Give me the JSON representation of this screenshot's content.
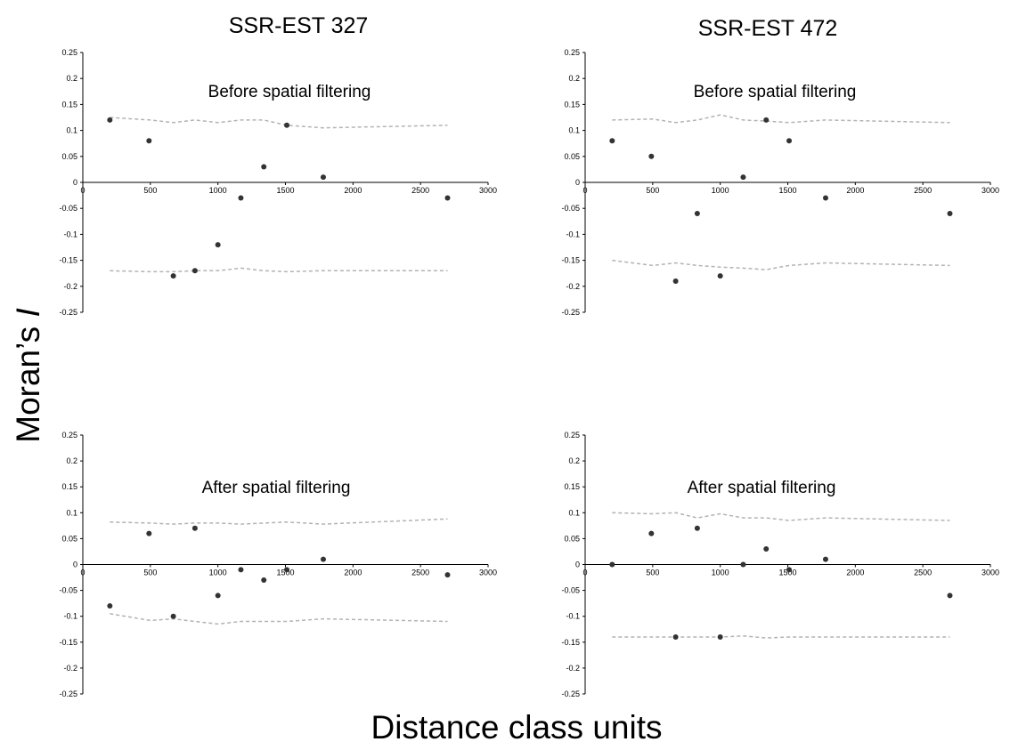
{
  "figure": {
    "ylabel": "Moran’s I",
    "xlabel": "Distance class units",
    "colors": {
      "points": "#333333",
      "envelope": "#b3b3b3",
      "axis": "#000000"
    }
  },
  "chart_data": [
    {
      "type": "scatter",
      "title": "SSR-EST 327",
      "annotation": "Before spatial filtering",
      "xlim": [
        0,
        3000
      ],
      "ylim": [
        -0.25,
        0.25
      ],
      "xticks": [
        0,
        500,
        1000,
        1500,
        2000,
        2500,
        3000
      ],
      "yticks": [
        0.25,
        0.2,
        0.15,
        0.1,
        0.05,
        0,
        -0.05,
        -0.1,
        -0.15,
        -0.2,
        -0.25
      ],
      "points": [
        [
          200,
          0.12
        ],
        [
          490,
          0.08
        ],
        [
          670,
          -0.18
        ],
        [
          830,
          -0.17
        ],
        [
          1000,
          -0.12
        ],
        [
          1170,
          -0.03
        ],
        [
          1340,
          0.03
        ],
        [
          1510,
          0.11
        ],
        [
          1780,
          0.01
        ],
        [
          2700,
          -0.03
        ]
      ],
      "upper": [
        [
          200,
          0.125
        ],
        [
          500,
          0.12
        ],
        [
          670,
          0.115
        ],
        [
          830,
          0.12
        ],
        [
          1000,
          0.115
        ],
        [
          1170,
          0.12
        ],
        [
          1340,
          0.12
        ],
        [
          1510,
          0.11
        ],
        [
          1780,
          0.105
        ],
        [
          2700,
          0.11
        ]
      ],
      "lower": [
        [
          200,
          -0.17
        ],
        [
          500,
          -0.172
        ],
        [
          670,
          -0.172
        ],
        [
          830,
          -0.17
        ],
        [
          1000,
          -0.17
        ],
        [
          1170,
          -0.165
        ],
        [
          1340,
          -0.17
        ],
        [
          1510,
          -0.172
        ],
        [
          1780,
          -0.17
        ],
        [
          2700,
          -0.17
        ]
      ]
    },
    {
      "type": "scatter",
      "title": "SSR-EST 472",
      "annotation": "Before spatial filtering",
      "xlim": [
        0,
        3000
      ],
      "ylim": [
        -0.25,
        0.25
      ],
      "xticks": [
        0,
        500,
        1000,
        1500,
        2000,
        2500,
        3000
      ],
      "yticks": [
        0.25,
        0.2,
        0.15,
        0.1,
        0.05,
        0,
        -0.05,
        -0.1,
        -0.15,
        -0.2,
        -0.25
      ],
      "points": [
        [
          200,
          0.08
        ],
        [
          490,
          0.05
        ],
        [
          670,
          -0.19
        ],
        [
          830,
          -0.06
        ],
        [
          1000,
          -0.18
        ],
        [
          1170,
          0.01
        ],
        [
          1340,
          0.12
        ],
        [
          1510,
          0.08
        ],
        [
          1780,
          -0.03
        ],
        [
          2700,
          -0.06
        ]
      ],
      "upper": [
        [
          200,
          0.12
        ],
        [
          500,
          0.122
        ],
        [
          670,
          0.115
        ],
        [
          830,
          0.12
        ],
        [
          1000,
          0.13
        ],
        [
          1170,
          0.12
        ],
        [
          1340,
          0.118
        ],
        [
          1510,
          0.115
        ],
        [
          1780,
          0.12
        ],
        [
          2700,
          0.115
        ]
      ],
      "lower": [
        [
          200,
          -0.15
        ],
        [
          500,
          -0.16
        ],
        [
          670,
          -0.155
        ],
        [
          830,
          -0.16
        ],
        [
          1000,
          -0.163
        ],
        [
          1170,
          -0.165
        ],
        [
          1340,
          -0.168
        ],
        [
          1510,
          -0.16
        ],
        [
          1780,
          -0.155
        ],
        [
          2700,
          -0.16
        ]
      ]
    },
    {
      "type": "scatter",
      "title": "",
      "annotation": "After spatial filtering",
      "xlim": [
        0,
        3000
      ],
      "ylim": [
        -0.25,
        0.25
      ],
      "xticks": [
        0,
        500,
        1000,
        1500,
        2000,
        2500,
        3000
      ],
      "yticks": [
        0.25,
        0.2,
        0.15,
        0.1,
        0.05,
        0,
        -0.05,
        -0.1,
        -0.15,
        -0.2,
        -0.25
      ],
      "points": [
        [
          200,
          -0.08
        ],
        [
          490,
          0.06
        ],
        [
          670,
          -0.1
        ],
        [
          830,
          0.07
        ],
        [
          1000,
          -0.06
        ],
        [
          1170,
          -0.01
        ],
        [
          1340,
          -0.03
        ],
        [
          1510,
          -0.01
        ],
        [
          1780,
          0.01
        ],
        [
          2700,
          -0.02
        ]
      ],
      "upper": [
        [
          200,
          0.082
        ],
        [
          500,
          0.08
        ],
        [
          670,
          0.078
        ],
        [
          830,
          0.08
        ],
        [
          1000,
          0.08
        ],
        [
          1170,
          0.078
        ],
        [
          1340,
          0.08
        ],
        [
          1510,
          0.082
        ],
        [
          1780,
          0.078
        ],
        [
          2700,
          0.088
        ]
      ],
      "lower": [
        [
          200,
          -0.095
        ],
        [
          500,
          -0.108
        ],
        [
          670,
          -0.105
        ],
        [
          830,
          -0.11
        ],
        [
          1000,
          -0.115
        ],
        [
          1170,
          -0.11
        ],
        [
          1340,
          -0.11
        ],
        [
          1510,
          -0.11
        ],
        [
          1780,
          -0.105
        ],
        [
          2700,
          -0.11
        ]
      ]
    },
    {
      "type": "scatter",
      "title": "",
      "annotation": "After spatial filtering",
      "xlim": [
        0,
        3000
      ],
      "ylim": [
        -0.25,
        0.25
      ],
      "xticks": [
        0,
        500,
        1000,
        1500,
        2000,
        2500,
        3000
      ],
      "yticks": [
        0.25,
        0.2,
        0.15,
        0.1,
        0.05,
        0,
        -0.05,
        -0.1,
        -0.15,
        -0.2,
        -0.25
      ],
      "points": [
        [
          200,
          0.0
        ],
        [
          490,
          0.06
        ],
        [
          670,
          -0.14
        ],
        [
          830,
          0.07
        ],
        [
          1000,
          -0.14
        ],
        [
          1170,
          0.0
        ],
        [
          1340,
          0.03
        ],
        [
          1510,
          -0.01
        ],
        [
          1780,
          0.01
        ],
        [
          2700,
          -0.06
        ]
      ],
      "upper": [
        [
          200,
          0.1
        ],
        [
          500,
          0.098
        ],
        [
          670,
          0.1
        ],
        [
          830,
          0.09
        ],
        [
          1000,
          0.098
        ],
        [
          1170,
          0.09
        ],
        [
          1340,
          0.09
        ],
        [
          1510,
          0.085
        ],
        [
          1780,
          0.09
        ],
        [
          2700,
          0.085
        ]
      ],
      "lower": [
        [
          200,
          -0.14
        ],
        [
          500,
          -0.14
        ],
        [
          670,
          -0.14
        ],
        [
          830,
          -0.14
        ],
        [
          1000,
          -0.14
        ],
        [
          1170,
          -0.138
        ],
        [
          1340,
          -0.142
        ],
        [
          1510,
          -0.14
        ],
        [
          1780,
          -0.14
        ],
        [
          2700,
          -0.14
        ]
      ]
    }
  ]
}
